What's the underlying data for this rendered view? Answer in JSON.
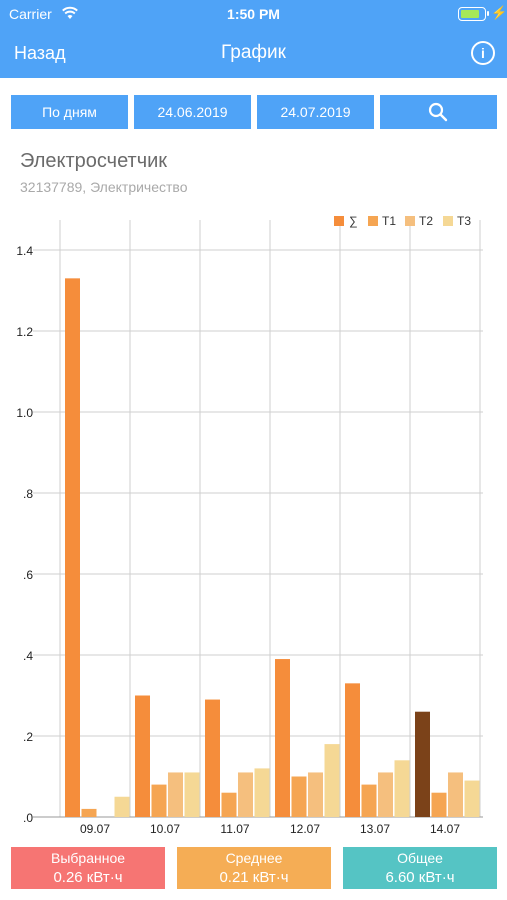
{
  "status": {
    "carrier": "Carrier",
    "time": "1:50 PM",
    "battery": 0.8
  },
  "nav": {
    "back": "Назад",
    "title": "График",
    "info": "i"
  },
  "filters": {
    "mode": "По дням",
    "from": "24.06.2019",
    "to": "24.07.2019"
  },
  "meter": {
    "name": "Электросчетчик",
    "sub": "32137789, Электричество"
  },
  "legend": [
    {
      "label": "∑",
      "color": "#f58d3b"
    },
    {
      "label": "T1",
      "color": "#f5a552"
    },
    {
      "label": "T2",
      "color": "#f5bf7e"
    },
    {
      "label": "T3",
      "color": "#f5d895"
    }
  ],
  "chart_data": {
    "type": "bar",
    "categories": [
      "09.07",
      "10.07",
      "11.07",
      "12.07",
      "13.07",
      "14.07"
    ],
    "series": [
      {
        "name": "∑",
        "values": [
          1.33,
          0.3,
          0.29,
          0.39,
          0.33,
          0.26
        ]
      },
      {
        "name": "T1",
        "values": [
          0.02,
          0.08,
          0.06,
          0.1,
          0.08,
          0.06
        ]
      },
      {
        "name": "T2",
        "values": [
          0.0,
          0.11,
          0.11,
          0.11,
          0.11,
          0.11
        ]
      },
      {
        "name": "T3",
        "values": [
          0.05,
          0.11,
          0.12,
          0.18,
          0.14,
          0.09
        ]
      }
    ],
    "selected_category": "14.07",
    "selected_color": "#7b4219",
    "yticks": [
      ".0",
      ".2",
      ".4",
      ".6",
      ".8",
      "1.0",
      "1.2",
      "1.4"
    ],
    "ylim": [
      0,
      1.5
    ],
    "grid": true,
    "legend_position": "top-right"
  },
  "stats": [
    {
      "title": "Выбранное",
      "value": "0.26 кВт·ч",
      "color": "#f67573"
    },
    {
      "title": "Среднее",
      "value": "0.21 кВт·ч",
      "color": "#f5ad55"
    },
    {
      "title": "Общее",
      "value": "6.60 кВт·ч",
      "color": "#55c4c4"
    }
  ]
}
